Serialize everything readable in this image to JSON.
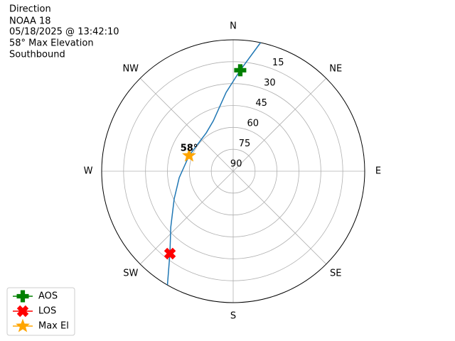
{
  "chart_data": {
    "type": "polar",
    "text_lines": [
      "Direction",
      "NOAA 18",
      "05/18/2025 @ 13:42:10",
      "58° Max Elevation",
      "Southbound"
    ],
    "rlim": [
      90,
      0
    ],
    "rticks": [
      90,
      75,
      60,
      45,
      30,
      15
    ],
    "thetaticks": [
      {
        "value": 0,
        "label": "N"
      },
      {
        "value": 45,
        "label": "NE"
      },
      {
        "value": 90,
        "label": "E"
      },
      {
        "value": 135,
        "label": "SE"
      },
      {
        "value": 180,
        "label": "S"
      },
      {
        "value": 225,
        "label": "SW"
      },
      {
        "value": 270,
        "label": "W"
      },
      {
        "value": 315,
        "label": "NW"
      }
    ],
    "grid": true,
    "legend": "lower left",
    "series": [
      {
        "color": "#1f77b4",
        "theta": [
          12,
          4,
          354.9,
          338.5,
          325,
          289.5,
          263.2,
          244.8,
          228.1,
          217.5,
          210
        ],
        "values": [
          0,
          20.7,
          35.8,
          52.9,
          57.9,
          58,
          52.8,
          45.4,
          32.6,
          18.9,
          0
        ]
      },
      {
        "name": "AOS",
        "color": "#008000",
        "marker": "P",
        "theta": [
          4
        ],
        "values": [
          20.7
        ]
      },
      {
        "name": "LOS",
        "color": "#ff0000",
        "marker": "X",
        "theta": [
          217.5
        ],
        "values": [
          18.9
        ]
      },
      {
        "name": "Max El",
        "color": "#ffa500",
        "marker": "*",
        "theta": [
          289.5
        ],
        "values": [
          58
        ],
        "value_labels": [
          "58°"
        ]
      }
    ]
  }
}
